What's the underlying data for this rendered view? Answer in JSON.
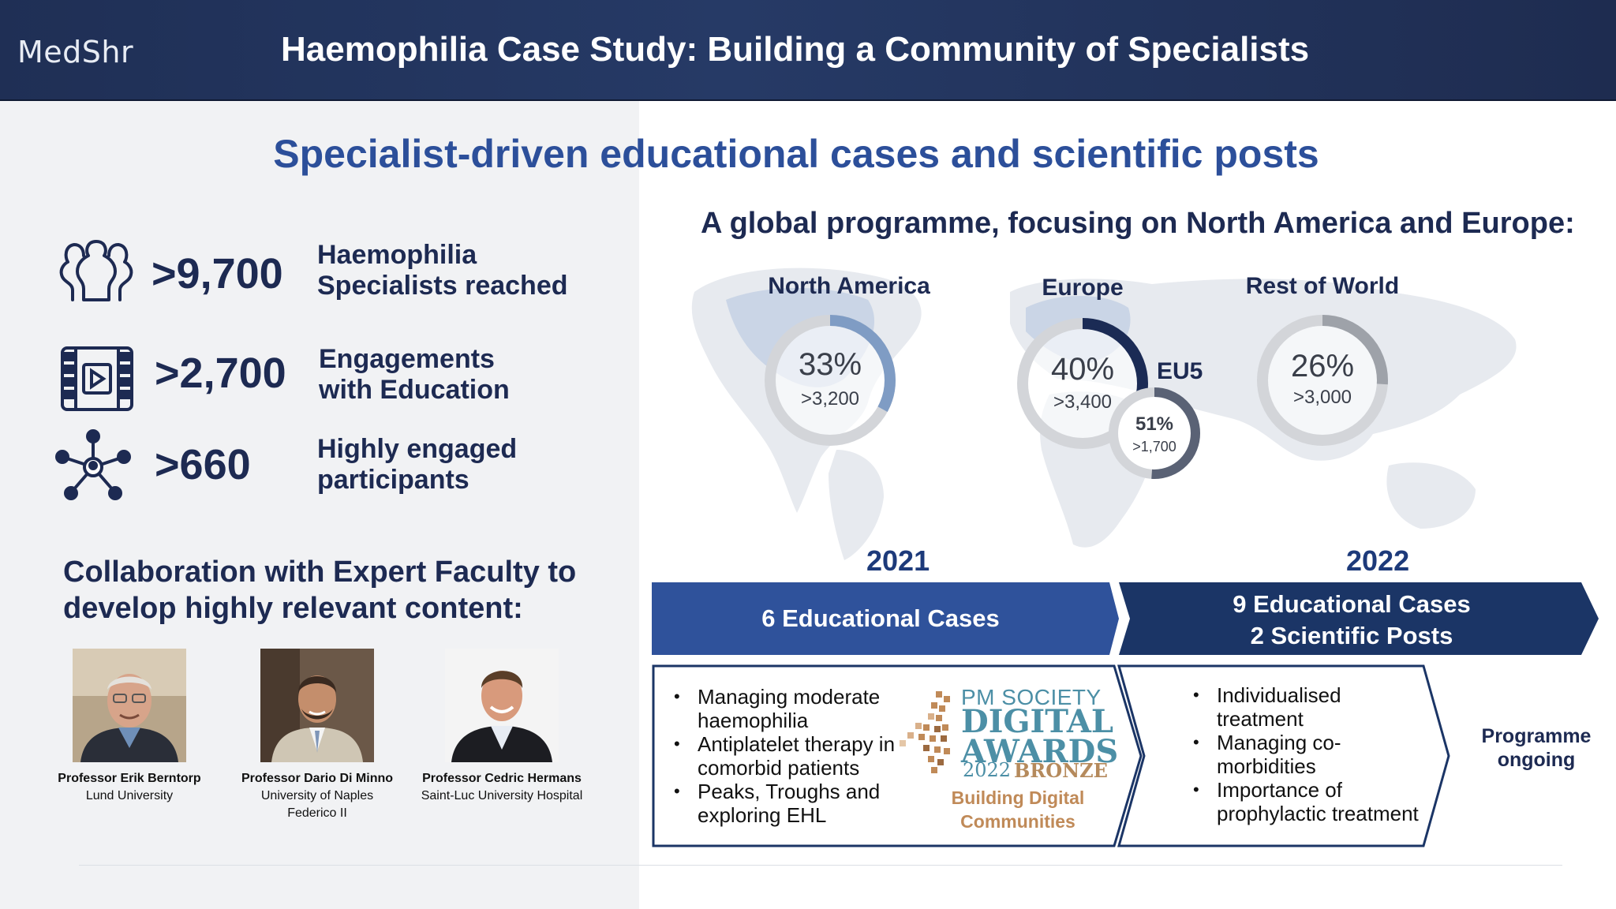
{
  "header": {
    "logo": "MedShr",
    "title": "Haemophilia Case Study: Building a Community of Specialists"
  },
  "subtitle": "Specialist-driven educational cases and scientific posts",
  "stats": [
    {
      "icon": "people-icon",
      "value": ">9,700",
      "label_line1": "Haemophilia",
      "label_line2": "Specialists reached"
    },
    {
      "icon": "video-icon",
      "value": ">2,700",
      "label_line1": "Engagements",
      "label_line2": "with Education"
    },
    {
      "icon": "network-icon",
      "value": ">660",
      "label_line1": "Highly engaged",
      "label_line2": "participants"
    }
  ],
  "collaboration": {
    "heading_line1": "Collaboration with Expert Faculty to",
    "heading_line2": "develop highly relevant content:"
  },
  "faculty": [
    {
      "name": "Professor Erik Berntorp",
      "affiliation_line1": "Lund University",
      "affiliation_line2": ""
    },
    {
      "name": "Professor Dario Di Minno",
      "affiliation_line1": "University of Naples",
      "affiliation_line2": "Federico II"
    },
    {
      "name": "Professor Cedric Hermans",
      "affiliation_line1": "Saint-Luc University Hospital",
      "affiliation_line2": ""
    }
  ],
  "global": {
    "heading": "A global programme, focusing on North America and Europe:",
    "regions": [
      {
        "name": "North America",
        "percent": "33%",
        "count": ">3,200",
        "fraction": 0.33,
        "color": "#7f9cc4"
      },
      {
        "name": "Europe",
        "percent": "40%",
        "count": ">3,400",
        "fraction": 0.4,
        "color": "#1b2b55"
      },
      {
        "name": "Rest of World",
        "percent": "26%",
        "count": ">3,000",
        "fraction": 0.26,
        "color": "#9ea2a9"
      }
    ],
    "eu5": {
      "label": "EU5",
      "percent": "51%",
      "count": ">1,700",
      "fraction": 0.51,
      "color": "#5a6275"
    }
  },
  "timeline": {
    "year_2021": "2021",
    "year_2022": "2022",
    "banner_2021": "6 Educational Cases",
    "banner_2022_line1": "9 Educational Cases",
    "banner_2022_line2": "2 Scientific Posts",
    "bullets_2021": [
      {
        "line1": "Managing moderate",
        "line2": "haemophilia"
      },
      {
        "line1": "Antiplatelet therapy in",
        "line2": "comorbid patients"
      },
      {
        "line1": "Peaks, Troughs and",
        "line2": "exploring EHL"
      }
    ],
    "bullets_2022": [
      {
        "line1": "Individualised",
        "line2": "treatment"
      },
      {
        "line1": "Managing co-",
        "line2": "morbidities"
      },
      {
        "line1": "Importance of",
        "line2": "prophylactic treatment"
      }
    ],
    "ongoing_line1": "Programme",
    "ongoing_line2": "ongoing",
    "colors": {
      "banner_2021": "#2f529b",
      "banner_2022": "#1b3566"
    }
  },
  "award": {
    "society": "PM SOCIETY",
    "digital": "DIGITAL",
    "awards": "AWARDS",
    "year": "2022",
    "tier": "BRONZE",
    "sub_line1": "Building Digital",
    "sub_line2": "Communities"
  }
}
